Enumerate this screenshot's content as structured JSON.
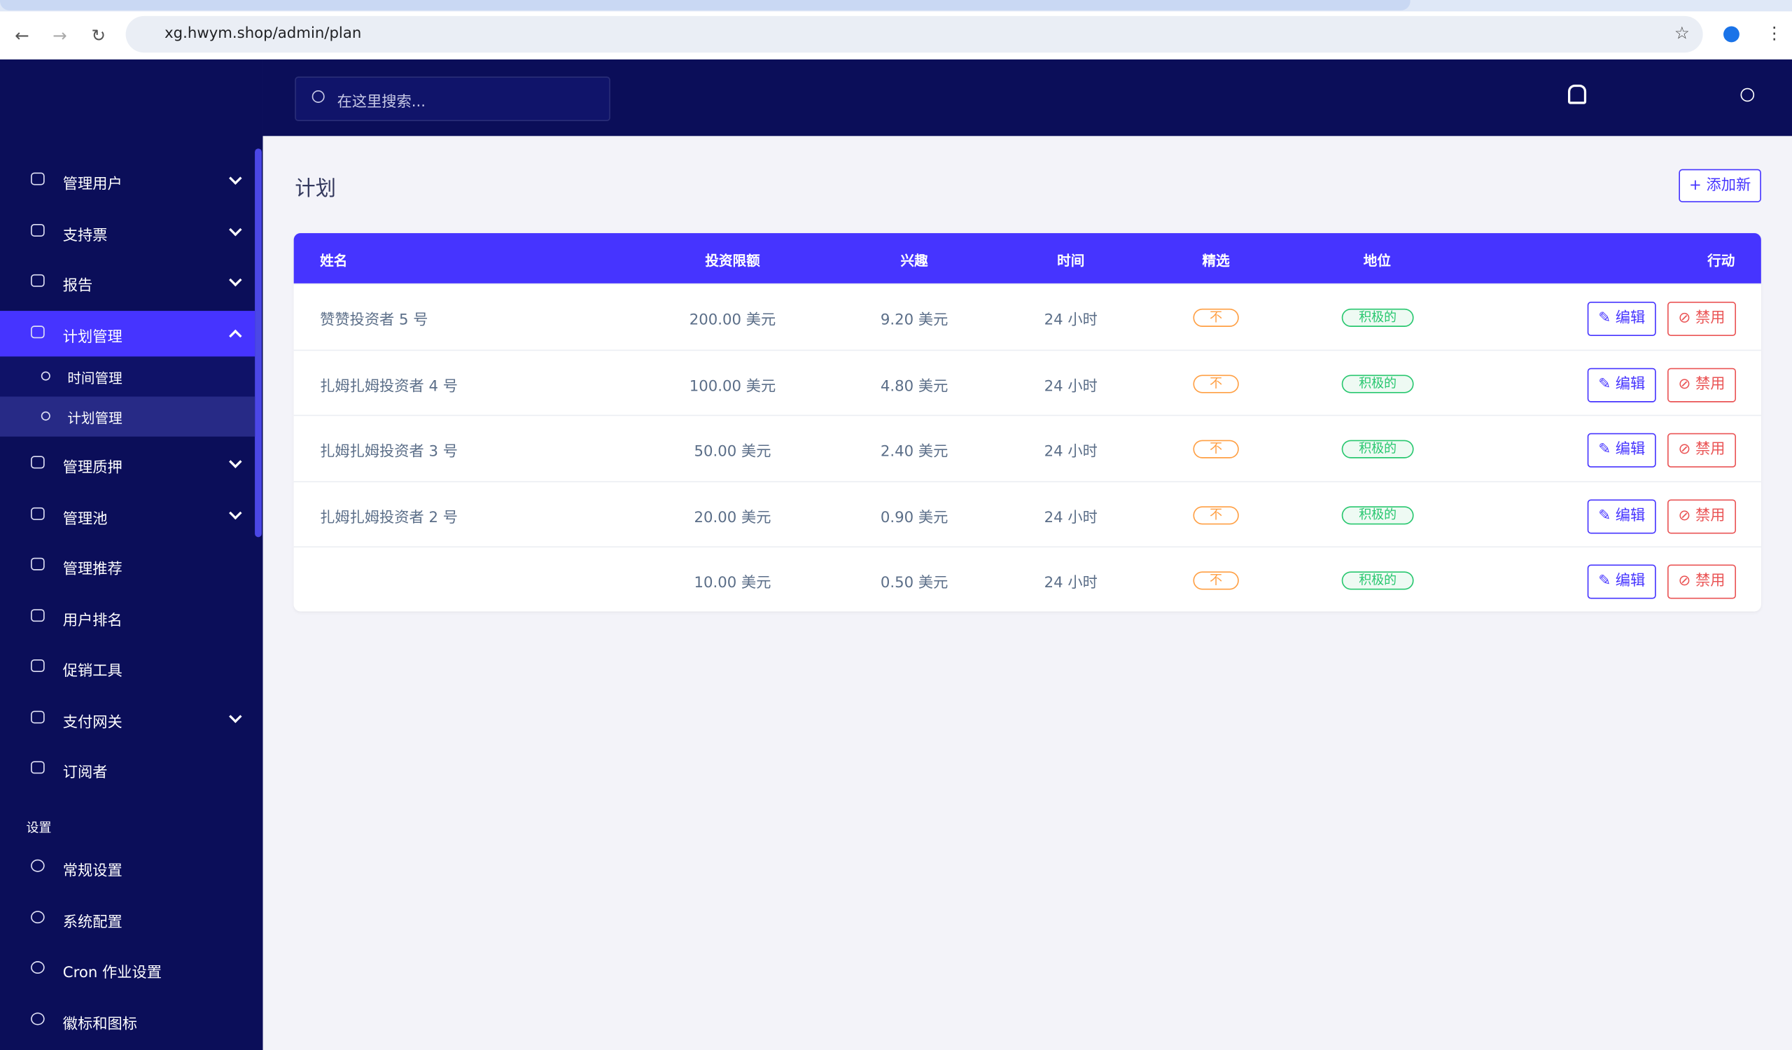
{
  "browser": {
    "url": "xg.hwym.shop/admin/plan"
  },
  "header": {
    "search_placeholder": "在这里搜索..."
  },
  "sidebar": {
    "menu": [
      "管理用户",
      "支持票",
      "报告",
      "计划管理",
      "管理质押",
      "管理池",
      "管理推荐",
      "用户排名",
      "促销工具",
      "支付网关",
      "订阅者"
    ],
    "submenu": [
      "时间管理",
      "计划管理"
    ],
    "section": "设置",
    "settings": [
      "常规设置",
      "系统配置",
      "Cron 作业设置",
      "徽标和图标"
    ]
  },
  "page": {
    "title": "计划",
    "add_button": "+ 添加新"
  },
  "table": {
    "headers": [
      "姓名",
      "投资限额",
      "兴趣",
      "时间",
      "精选",
      "地位",
      "行动"
    ],
    "rows": [
      {
        "name": "赞赞投资者 5 号",
        "amount": "200.00 美元",
        "interest": "9.20 美元",
        "time": "24 小时",
        "featured": "不",
        "status": "积极的"
      },
      {
        "name": "扎姆扎姆投资者 4 号",
        "amount": "100.00 美元",
        "interest": "4.80 美元",
        "time": "24 小时",
        "featured": "不",
        "status": "积极的"
      },
      {
        "name": "扎姆扎姆投资者 3 号",
        "amount": "50.00 美元",
        "interest": "2.40 美元",
        "time": "24 小时",
        "featured": "不",
        "status": "积极的"
      },
      {
        "name": "扎姆扎姆投资者 2 号",
        "amount": "20.00 美元",
        "interest": "0.90 美元",
        "time": "24 小时",
        "featured": "不",
        "status": "积极的"
      },
      {
        "name": null,
        "amount": "10.00 美元",
        "interest": "0.50 美元",
        "time": "24 小时",
        "featured": "不",
        "status": "积极的"
      }
    ],
    "actions": {
      "edit": "✎ 编辑",
      "disable": "⊘ 禁用"
    }
  }
}
